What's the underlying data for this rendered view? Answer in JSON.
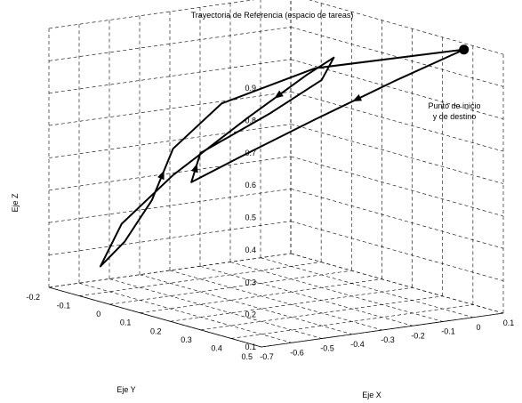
{
  "chart_data": {
    "type": "line3d",
    "title": "Trayectoria de Referencia (espacio de tareas)",
    "xlabel": "Eje X",
    "ylabel": "Eje Y",
    "zlabel": "Eje Z",
    "xlim": [
      -0.7,
      0.1
    ],
    "ylim": [
      -0.2,
      0.5
    ],
    "zlim": [
      0.1,
      0.9
    ],
    "x_ticks": [
      "-0.7",
      "-0.6",
      "-0.5",
      "-0.4",
      "-0.3",
      "-0.2",
      "-0.1",
      "0",
      "0.1"
    ],
    "y_ticks": [
      "-0.2",
      "-0.1",
      "0",
      "0.1",
      "0.2",
      "0.3",
      "0.4",
      "0.5"
    ],
    "z_ticks": [
      "0.1",
      "0.2",
      "0.3",
      "0.4",
      "0.5",
      "0.6",
      "0.7",
      "0.8",
      "0.9"
    ],
    "grid": true,
    "annotation": {
      "lines": [
        "Punto de inicio",
        "y de destino"
      ]
    },
    "series": [
      {
        "points": [
          [
            0.05,
            0.42,
            0.9
          ],
          [
            -0.08,
            0.33,
            0.8
          ],
          [
            -0.24,
            0.22,
            0.67
          ],
          [
            -0.4,
            0.13,
            0.55
          ],
          [
            -0.5,
            0.07,
            0.47
          ],
          [
            -0.48,
            0.08,
            0.56
          ],
          [
            -0.37,
            0.2,
            0.7
          ],
          [
            -0.3,
            0.3,
            0.82
          ],
          [
            -0.3,
            0.34,
            0.9
          ],
          [
            -0.37,
            0.32,
            0.85
          ],
          [
            -0.47,
            0.23,
            0.71
          ],
          [
            -0.56,
            0.07,
            0.5
          ],
          [
            -0.6,
            -0.06,
            0.32
          ],
          [
            -0.6,
            -0.13,
            0.17
          ],
          [
            -0.53,
            -0.12,
            0.24
          ],
          [
            -0.5,
            -0.06,
            0.38
          ],
          [
            -0.48,
            -0.01,
            0.55
          ],
          [
            -0.4,
            0.07,
            0.7
          ],
          [
            -0.22,
            0.2,
            0.82
          ],
          [
            0.05,
            0.42,
            0.9
          ]
        ]
      }
    ]
  }
}
